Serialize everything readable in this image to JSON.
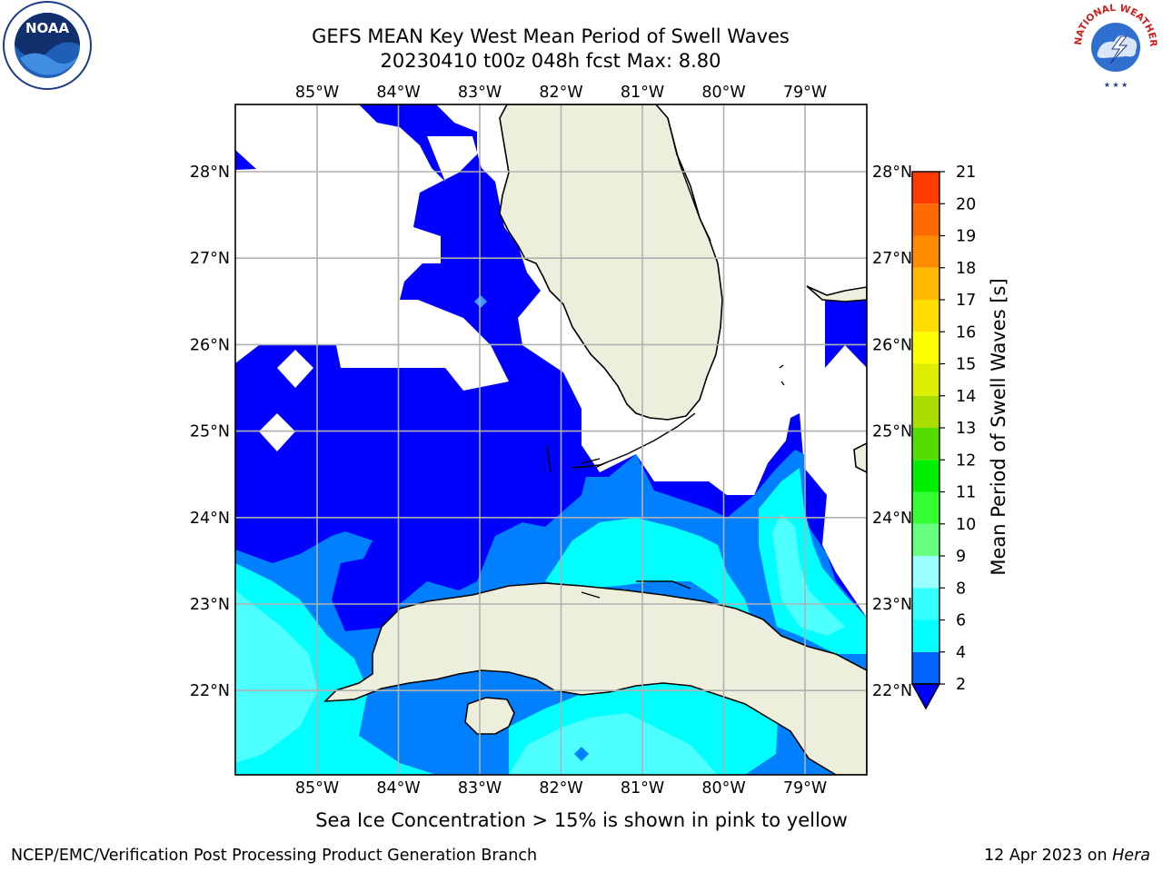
{
  "header": {
    "title_line1": "GEFS MEAN Key West Mean Period of Swell Waves",
    "title_line2": "20230410 t00z 048h fcst   Max: 8.80"
  },
  "footer": {
    "ice_note": "Sea Ice Concentration > 15% is shown in pink to yellow",
    "credit": "NCEP/EMC/Verification Post Processing Product Generation Branch",
    "date_prefix": "12 Apr 2023 on ",
    "date_host": "Hera"
  },
  "logos": {
    "noaa_text": "NOAA",
    "nws_text": "NATIONAL WEATHER SERVICE"
  },
  "map": {
    "lon_ticks": [
      {
        "lon": -85,
        "label": "85°W"
      },
      {
        "lon": -84,
        "label": "84°W"
      },
      {
        "lon": -83,
        "label": "83°W"
      },
      {
        "lon": -82,
        "label": "82°W"
      },
      {
        "lon": -81,
        "label": "81°W"
      },
      {
        "lon": -80,
        "label": "80°W"
      },
      {
        "lon": -79,
        "label": "79°W"
      }
    ],
    "lat_ticks": [
      {
        "lat": 28,
        "label": "28°N"
      },
      {
        "lat": 27,
        "label": "27°N"
      },
      {
        "lat": 26,
        "label": "26°N"
      },
      {
        "lat": 25,
        "label": "25°N"
      },
      {
        "lat": 24,
        "label": "24°N"
      },
      {
        "lat": 23,
        "label": "23°N"
      },
      {
        "lat": 22,
        "label": "22°N"
      }
    ],
    "colors": {
      "land": "#eeeedd",
      "grid": "#b0b0b0",
      "level_2_4": "#0000ff",
      "level_4_6": "#0080ff",
      "level_6_8": "#00ffff",
      "level_8_9": "#4dffff"
    }
  },
  "colorbar": {
    "label": "Mean Period of Swell Waves [s]",
    "levels": [
      {
        "value": "2",
        "color": "#0062ff"
      },
      {
        "value": "4",
        "color": "#00ffff"
      },
      {
        "value": "6",
        "color": "#33ffff"
      },
      {
        "value": "8",
        "color": "#99ffff"
      },
      {
        "value": "9",
        "color": "#66ff80"
      },
      {
        "value": "10",
        "color": "#33ff33"
      },
      {
        "value": "11",
        "color": "#00ee00"
      },
      {
        "value": "12",
        "color": "#55dd00"
      },
      {
        "value": "13",
        "color": "#aadd00"
      },
      {
        "value": "14",
        "color": "#ddee00"
      },
      {
        "value": "15",
        "color": "#ffff00"
      },
      {
        "value": "16",
        "color": "#ffdd00"
      },
      {
        "value": "17",
        "color": "#ffb800"
      },
      {
        "value": "18",
        "color": "#ff8c00"
      },
      {
        "value": "19",
        "color": "#ff6a00"
      },
      {
        "value": "20",
        "color": "#ff3b00"
      },
      {
        "value": "21",
        "color": "#ff0000"
      }
    ],
    "under_color": "#0000ff"
  }
}
